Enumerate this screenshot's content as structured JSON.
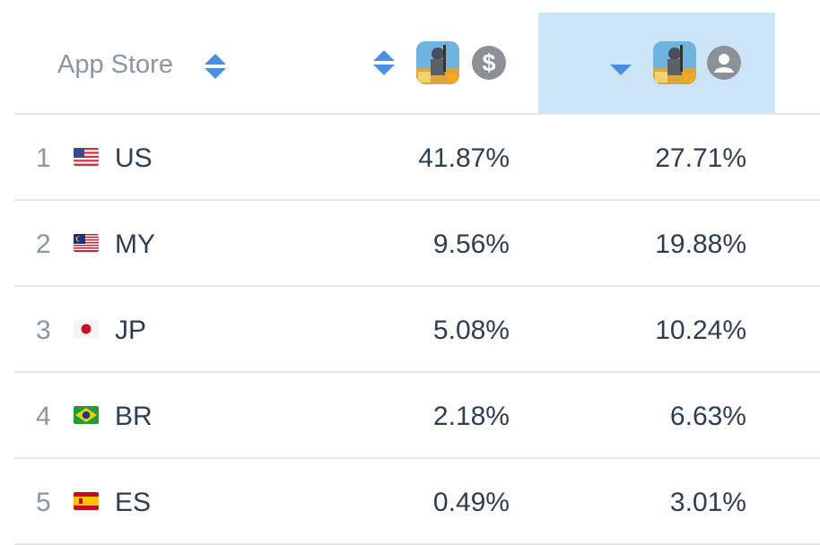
{
  "header": {
    "store_label": "App Store",
    "col1_app_icon": "pubg-mobile-app-icon",
    "col1_metric_icon": "dollar-icon",
    "col1_metric_symbol": "$",
    "col2_app_icon": "pubg-mobile-app-icon",
    "col2_metric_icon": "user-icon",
    "sort_color": "#4a90e2",
    "active_column_color": "#cce4f7"
  },
  "rows": [
    {
      "rank": "1",
      "flag": "us-flag-icon",
      "code": "US",
      "revenue": "41.87%",
      "downloads": "27.71%"
    },
    {
      "rank": "2",
      "flag": "my-flag-icon",
      "code": "MY",
      "revenue": "9.56%",
      "downloads": "19.88%"
    },
    {
      "rank": "3",
      "flag": "jp-flag-icon",
      "code": "JP",
      "revenue": "5.08%",
      "downloads": "10.24%"
    },
    {
      "rank": "4",
      "flag": "br-flag-icon",
      "code": "BR",
      "revenue": "2.18%",
      "downloads": "6.63%"
    },
    {
      "rank": "5",
      "flag": "es-flag-icon",
      "code": "ES",
      "revenue": "0.49%",
      "downloads": "3.01%"
    }
  ]
}
